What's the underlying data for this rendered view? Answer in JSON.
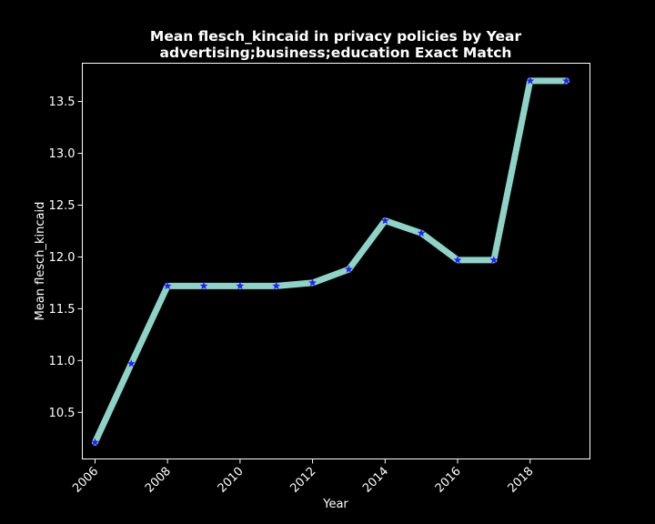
{
  "chart_data": {
    "type": "line",
    "title": "Mean flesch_kincaid in privacy policies by Year",
    "subtitle": "advertising;business;education Exact Match",
    "xlabel": "Year",
    "ylabel": "Mean flesch_kincaid",
    "x": [
      2006,
      2007,
      2008,
      2009,
      2010,
      2011,
      2012,
      2013,
      2014,
      2015,
      2016,
      2017,
      2018,
      2019
    ],
    "series": [
      {
        "values": [
          10.21,
          10.97,
          11.72,
          11.72,
          11.72,
          11.72,
          11.75,
          11.88,
          12.35,
          12.23,
          11.97,
          11.97,
          13.7,
          13.7
        ],
        "line_color": "#8dd3c7",
        "marker": "star",
        "marker_color": "#1f1fff"
      }
    ],
    "xlim": [
      2005.65,
      2019.65
    ],
    "ylim": [
      10.05,
      13.87
    ],
    "x_ticks": [
      2006,
      2008,
      2010,
      2012,
      2014,
      2016,
      2018
    ],
    "x_tick_labels": [
      "2006",
      "2008",
      "2010",
      "2012",
      "2014",
      "2016",
      "2018"
    ],
    "y_ticks": [
      10.5,
      11.0,
      11.5,
      12.0,
      12.5,
      13.0,
      13.5
    ],
    "y_tick_labels": [
      "10.5",
      "11.0",
      "11.5",
      "12.0",
      "12.5",
      "13.0",
      "13.5"
    ],
    "grid": false,
    "background": "#000000",
    "foreground": "#ffffff"
  }
}
